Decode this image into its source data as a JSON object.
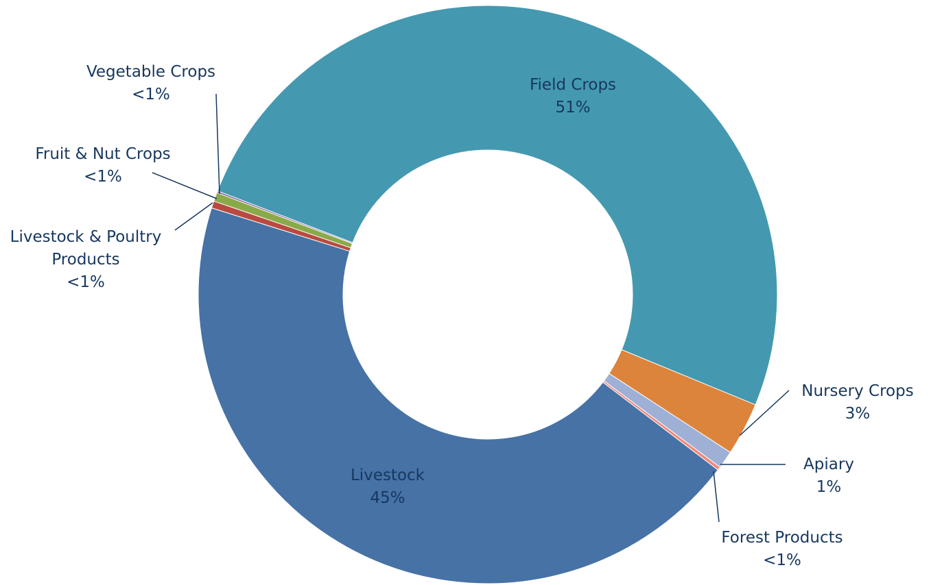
{
  "chart_data": {
    "type": "donut",
    "categories": [
      "Field Crops",
      "Nursery Crops",
      "Apiary",
      "Forest Products",
      "Livestock",
      "Livestock & Poultry Products",
      "Fruit & Nut Crops",
      "Vegetable Crops"
    ],
    "values": [
      51,
      3,
      1,
      0.2,
      45,
      0.4,
      0.5,
      0.1
    ],
    "value_labels": [
      "51%",
      "3%",
      "1%",
      "<1%",
      "45%",
      "<1%",
      "<1%",
      "<1%"
    ],
    "colors": [
      "#4499b0",
      "#dd843c",
      "#9eb0d6",
      "#f08a7a",
      "#4672a6",
      "#b94a40",
      "#8aaa4a",
      "#7a5a9a"
    ]
  }
}
